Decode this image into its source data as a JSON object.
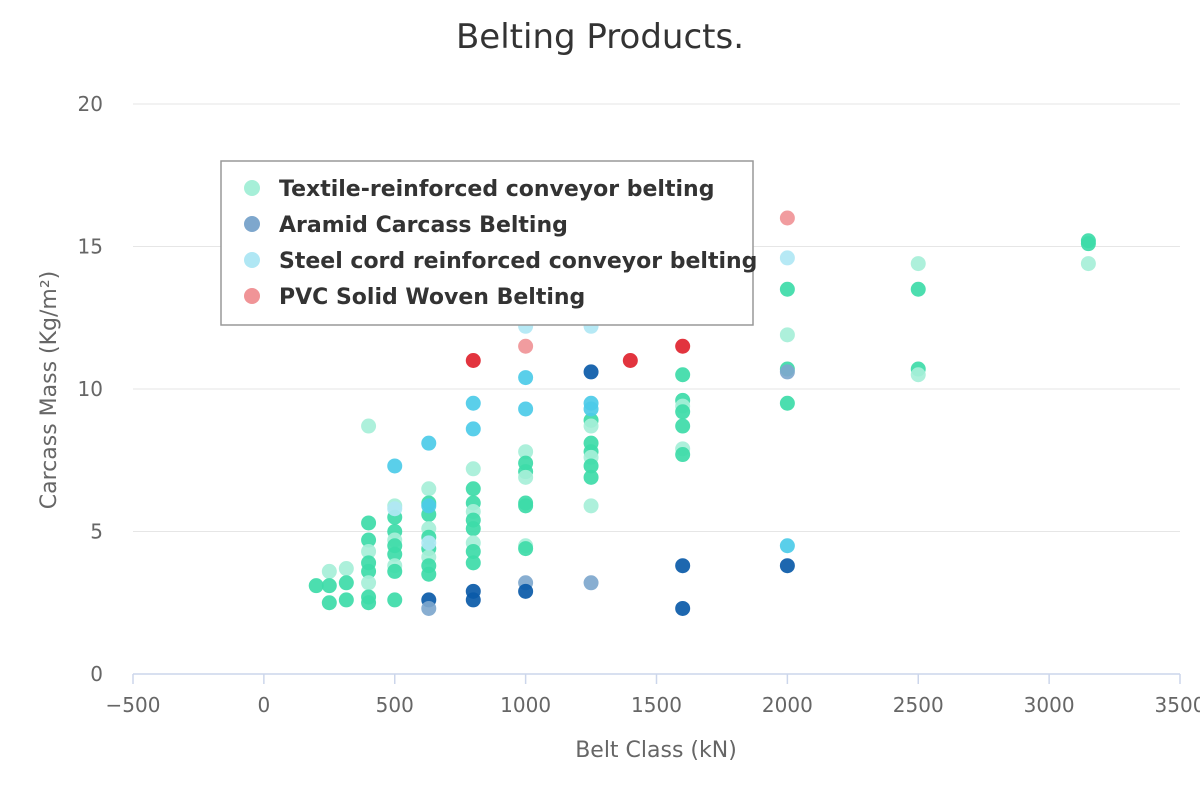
{
  "chart_data": {
    "type": "scatter",
    "title": "Belting Products.",
    "xlabel": "Belt Class (kN)",
    "ylabel": "Carcass Mass (Kg/m²)",
    "xlim": [
      -500,
      3500
    ],
    "ylim": [
      0,
      20
    ],
    "x_ticks": [
      -500,
      0,
      500,
      1000,
      1500,
      2000,
      2500,
      3000,
      3500
    ],
    "x_tick_labels": [
      "−500",
      "0",
      "500",
      "1000",
      "1500",
      "2000",
      "2500",
      "3000",
      "3500"
    ],
    "y_ticks": [
      0,
      5,
      10,
      15,
      20
    ],
    "y_tick_labels": [
      "0",
      "5",
      "10",
      "15",
      "20"
    ],
    "grid": "horizontal",
    "legend_position": "upper-left inside plot",
    "series": [
      {
        "name": "Textile-reinforced conveyor belting",
        "color": "#3ddba8",
        "light_color": "#a6efd8",
        "points": [
          [
            200,
            3.1
          ],
          [
            250,
            3.6
          ],
          [
            250,
            3.1
          ],
          [
            250,
            2.5
          ],
          [
            315,
            3.7
          ],
          [
            315,
            3.2
          ],
          [
            315,
            2.6
          ],
          [
            400,
            8.7
          ],
          [
            400,
            5.3
          ],
          [
            400,
            4.7
          ],
          [
            400,
            4.3
          ],
          [
            400,
            3.9
          ],
          [
            400,
            3.6
          ],
          [
            400,
            3.2
          ],
          [
            400,
            2.7
          ],
          [
            400,
            2.5
          ],
          [
            500,
            5.9
          ],
          [
            500,
            5.5
          ],
          [
            500,
            5.0
          ],
          [
            500,
            4.7
          ],
          [
            500,
            4.5
          ],
          [
            500,
            4.2
          ],
          [
            500,
            3.8
          ],
          [
            500,
            3.6
          ],
          [
            500,
            2.6
          ],
          [
            630,
            6.5
          ],
          [
            630,
            6.0
          ],
          [
            630,
            5.6
          ],
          [
            630,
            5.1
          ],
          [
            630,
            4.8
          ],
          [
            630,
            4.4
          ],
          [
            630,
            4.1
          ],
          [
            630,
            3.8
          ],
          [
            630,
            3.5
          ],
          [
            800,
            7.2
          ],
          [
            800,
            6.5
          ],
          [
            800,
            6.0
          ],
          [
            800,
            5.7
          ],
          [
            800,
            5.4
          ],
          [
            800,
            5.1
          ],
          [
            800,
            4.6
          ],
          [
            800,
            4.3
          ],
          [
            800,
            3.9
          ],
          [
            1000,
            7.8
          ],
          [
            1000,
            7.4
          ],
          [
            1000,
            7.1
          ],
          [
            1000,
            6.9
          ],
          [
            1000,
            6.0
          ],
          [
            1000,
            5.9
          ],
          [
            1000,
            4.5
          ],
          [
            1000,
            4.4
          ],
          [
            1250,
            8.9
          ],
          [
            1250,
            8.7
          ],
          [
            1250,
            8.1
          ],
          [
            1250,
            7.8
          ],
          [
            1250,
            7.6
          ],
          [
            1250,
            7.3
          ],
          [
            1250,
            6.9
          ],
          [
            1250,
            5.9
          ],
          [
            1600,
            10.5
          ],
          [
            1600,
            9.6
          ],
          [
            1600,
            9.4
          ],
          [
            1600,
            9.2
          ],
          [
            1600,
            8.7
          ],
          [
            1600,
            7.9
          ],
          [
            1600,
            7.7
          ],
          [
            2000,
            13.5
          ],
          [
            2000,
            11.9
          ],
          [
            2000,
            10.7
          ],
          [
            2000,
            9.5
          ],
          [
            2500,
            14.4
          ],
          [
            2500,
            13.5
          ],
          [
            2500,
            10.7
          ],
          [
            2500,
            10.5
          ],
          [
            3150,
            15.2
          ],
          [
            3150,
            15.1
          ],
          [
            3150,
            14.4
          ]
        ]
      },
      {
        "name": "Aramid Carcass Belting",
        "color": "#0a5aa8",
        "light_color": "#7ea7cd",
        "points": [
          [
            630,
            2.6
          ],
          [
            630,
            2.3
          ],
          [
            800,
            2.9
          ],
          [
            800,
            2.6
          ],
          [
            1000,
            3.2
          ],
          [
            1000,
            2.9
          ],
          [
            1250,
            10.6
          ],
          [
            1250,
            3.2
          ],
          [
            1600,
            3.8
          ],
          [
            1600,
            2.3
          ],
          [
            2000,
            10.6
          ],
          [
            2000,
            3.8
          ]
        ]
      },
      {
        "name": "Steel cord reinforced conveyor belting",
        "color": "#4ccbe8",
        "light_color": "#b0e7f4",
        "points": [
          [
            500,
            7.3
          ],
          [
            500,
            5.8
          ],
          [
            630,
            8.1
          ],
          [
            630,
            5.9
          ],
          [
            630,
            4.6
          ],
          [
            800,
            9.5
          ],
          [
            800,
            8.6
          ],
          [
            1000,
            12.2
          ],
          [
            1000,
            10.4
          ],
          [
            1000,
            9.3
          ],
          [
            1250,
            12.2
          ],
          [
            1250,
            9.5
          ],
          [
            1250,
            9.3
          ],
          [
            2000,
            14.6
          ],
          [
            2000,
            4.5
          ]
        ]
      },
      {
        "name": "PVC Solid Woven Belting",
        "color": "#e0232e",
        "light_color": "#f09497",
        "points": [
          [
            800,
            11.0
          ],
          [
            1000,
            11.5
          ],
          [
            1400,
            11.0
          ],
          [
            1600,
            11.5
          ],
          [
            2000,
            16.0
          ]
        ]
      }
    ]
  }
}
